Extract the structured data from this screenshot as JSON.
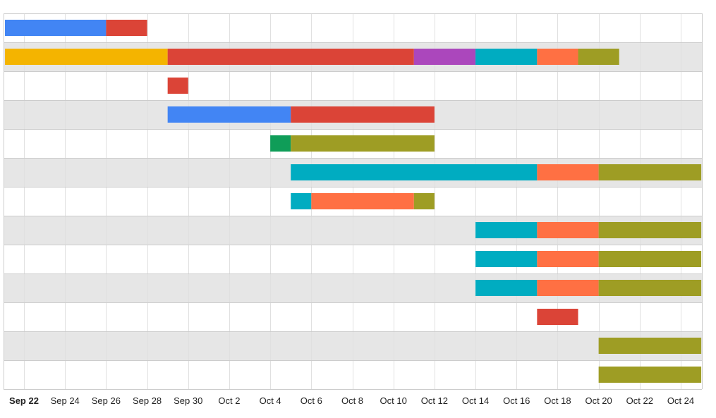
{
  "chart_data": {
    "type": "timeline",
    "x_axis": {
      "range": [
        "2025-09-21",
        "2025-10-25"
      ],
      "ticks": [
        {
          "date": "2025-09-22",
          "label": "Sep 22",
          "bold": true
        },
        {
          "date": "2025-09-24",
          "label": "Sep 24"
        },
        {
          "date": "2025-09-26",
          "label": "Sep 26"
        },
        {
          "date": "2025-09-28",
          "label": "Sep 28"
        },
        {
          "date": "2025-09-30",
          "label": "Sep 30"
        },
        {
          "date": "2025-10-02",
          "label": "Oct 2"
        },
        {
          "date": "2025-10-04",
          "label": "Oct 4"
        },
        {
          "date": "2025-10-06",
          "label": "Oct 6"
        },
        {
          "date": "2025-10-08",
          "label": "Oct 8"
        },
        {
          "date": "2025-10-10",
          "label": "Oct 10"
        },
        {
          "date": "2025-10-12",
          "label": "Oct 12"
        },
        {
          "date": "2025-10-14",
          "label": "Oct 14"
        },
        {
          "date": "2025-10-16",
          "label": "Oct 16"
        },
        {
          "date": "2025-10-18",
          "label": "Oct 18"
        },
        {
          "date": "2025-10-20",
          "label": "Oct 20"
        },
        {
          "date": "2025-10-22",
          "label": "Oct 22"
        },
        {
          "date": "2025-10-24",
          "label": "Oct 24"
        }
      ]
    },
    "colors": {
      "blue": "#4285f4",
      "red": "#db4437",
      "yellow": "#f4b400",
      "purple": "#ab47bc",
      "teal": "#00acc1",
      "orange": "#ff7043",
      "olive": "#9e9d24",
      "green": "#0f9d58",
      "row_alt": "#e6e6e6",
      "grid": "#e0e0e0",
      "row_border": "#cccccc"
    },
    "rows": [
      {
        "segments": [
          {
            "start": "2025-09-21",
            "end": "2025-09-26",
            "color": "blue"
          },
          {
            "start": "2025-09-26",
            "end": "2025-09-28",
            "color": "red"
          }
        ]
      },
      {
        "segments": [
          {
            "start": "2025-09-21",
            "end": "2025-09-29",
            "color": "yellow"
          },
          {
            "start": "2025-09-29",
            "end": "2025-10-11",
            "color": "red"
          },
          {
            "start": "2025-10-11",
            "end": "2025-10-14",
            "color": "purple"
          },
          {
            "start": "2025-10-14",
            "end": "2025-10-17",
            "color": "teal"
          },
          {
            "start": "2025-10-17",
            "end": "2025-10-19",
            "color": "orange"
          },
          {
            "start": "2025-10-19",
            "end": "2025-10-21",
            "color": "olive"
          }
        ]
      },
      {
        "segments": [
          {
            "start": "2025-09-29",
            "end": "2025-09-30",
            "color": "red"
          }
        ]
      },
      {
        "segments": [
          {
            "start": "2025-09-29",
            "end": "2025-10-05",
            "color": "blue"
          },
          {
            "start": "2025-10-05",
            "end": "2025-10-12",
            "color": "red"
          }
        ]
      },
      {
        "segments": [
          {
            "start": "2025-10-04",
            "end": "2025-10-05",
            "color": "green"
          },
          {
            "start": "2025-10-05",
            "end": "2025-10-12",
            "color": "olive"
          }
        ]
      },
      {
        "segments": [
          {
            "start": "2025-10-05",
            "end": "2025-10-17",
            "color": "teal"
          },
          {
            "start": "2025-10-17",
            "end": "2025-10-20",
            "color": "orange"
          },
          {
            "start": "2025-10-20",
            "end": "2025-10-25",
            "color": "olive"
          }
        ]
      },
      {
        "segments": [
          {
            "start": "2025-10-05",
            "end": "2025-10-06",
            "color": "teal"
          },
          {
            "start": "2025-10-06",
            "end": "2025-10-11",
            "color": "orange"
          },
          {
            "start": "2025-10-11",
            "end": "2025-10-12",
            "color": "olive"
          }
        ]
      },
      {
        "segments": [
          {
            "start": "2025-10-14",
            "end": "2025-10-17",
            "color": "teal"
          },
          {
            "start": "2025-10-17",
            "end": "2025-10-20",
            "color": "orange"
          },
          {
            "start": "2025-10-20",
            "end": "2025-10-25",
            "color": "olive"
          }
        ]
      },
      {
        "segments": [
          {
            "start": "2025-10-14",
            "end": "2025-10-17",
            "color": "teal"
          },
          {
            "start": "2025-10-17",
            "end": "2025-10-20",
            "color": "orange"
          },
          {
            "start": "2025-10-20",
            "end": "2025-10-25",
            "color": "olive"
          }
        ]
      },
      {
        "segments": [
          {
            "start": "2025-10-14",
            "end": "2025-10-17",
            "color": "teal"
          },
          {
            "start": "2025-10-17",
            "end": "2025-10-20",
            "color": "orange"
          },
          {
            "start": "2025-10-20",
            "end": "2025-10-25",
            "color": "olive"
          }
        ]
      },
      {
        "segments": [
          {
            "start": "2025-10-17",
            "end": "2025-10-19",
            "color": "red"
          }
        ]
      },
      {
        "segments": [
          {
            "start": "2025-10-20",
            "end": "2025-10-25",
            "color": "olive"
          }
        ]
      },
      {
        "segments": [
          {
            "start": "2025-10-20",
            "end": "2025-10-25",
            "color": "olive"
          }
        ]
      }
    ]
  }
}
